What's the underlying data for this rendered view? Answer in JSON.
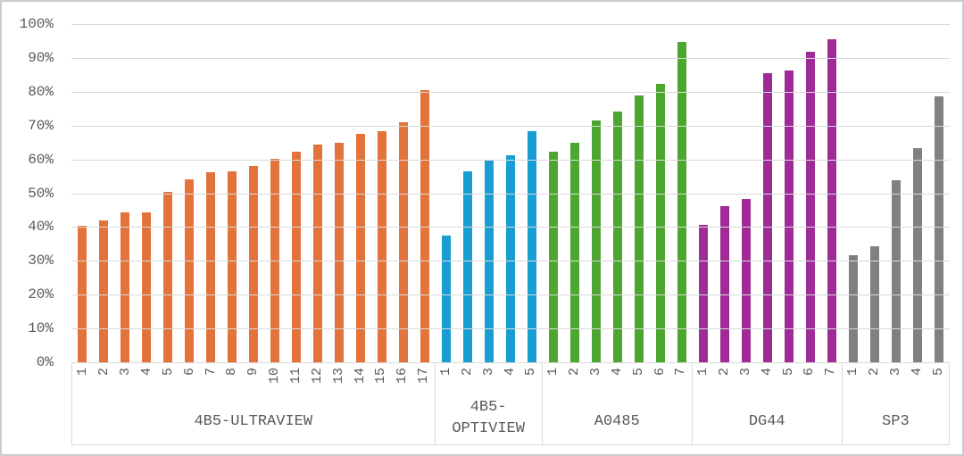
{
  "chart_data": {
    "type": "bar",
    "title": "",
    "xlabel": "",
    "ylabel": "",
    "ylim": [
      0,
      100
    ],
    "grid": "horizontal",
    "legend": "none",
    "y_ticks": [
      "0%",
      "10%",
      "20%",
      "30%",
      "40%",
      "50%",
      "60%",
      "70%",
      "80%",
      "90%",
      "100%"
    ],
    "colors": {
      "orange": "#e2733a",
      "blue": "#189ed3",
      "green": "#4ca62f",
      "purple": "#9e2b96",
      "gray": "#808080",
      "gridline": "#d9d9d9",
      "axis_text": "#595959"
    },
    "groups": [
      {
        "label": "4B5-ULTRAVIEW",
        "color": "#e2733a",
        "categories": [
          "1",
          "2",
          "3",
          "4",
          "5",
          "6",
          "7",
          "8",
          "9",
          "10",
          "11",
          "12",
          "13",
          "14",
          "15",
          "16",
          "17"
        ],
        "values": [
          40.5,
          42.0,
          44.2,
          44.4,
          50.4,
          54.0,
          56.1,
          56.6,
          58.1,
          60.2,
          62.2,
          64.4,
          64.8,
          67.6,
          68.3,
          70.9,
          80.4
        ]
      },
      {
        "label": "4B5-\nOPTIVIEW",
        "color": "#189ed3",
        "categories": [
          "1",
          "2",
          "3",
          "4",
          "5"
        ],
        "values": [
          37.4,
          56.6,
          59.7,
          61.2,
          68.4
        ]
      },
      {
        "label": "A0485",
        "color": "#4ca62f",
        "categories": [
          "1",
          "2",
          "3",
          "4",
          "5",
          "6",
          "7"
        ],
        "values": [
          62.4,
          65.0,
          71.5,
          74.2,
          79.0,
          82.3,
          94.8
        ]
      },
      {
        "label": "DG44",
        "color": "#9e2b96",
        "categories": [
          "1",
          "2",
          "3",
          "4",
          "5",
          "6",
          "7"
        ],
        "values": [
          40.7,
          46.1,
          48.4,
          85.6,
          86.3,
          91.7,
          95.6
        ]
      },
      {
        "label": "SP3",
        "color": "#808080",
        "categories": [
          "1",
          "2",
          "3",
          "4",
          "5"
        ],
        "values": [
          31.6,
          34.4,
          53.8,
          63.3,
          78.6
        ]
      }
    ]
  }
}
